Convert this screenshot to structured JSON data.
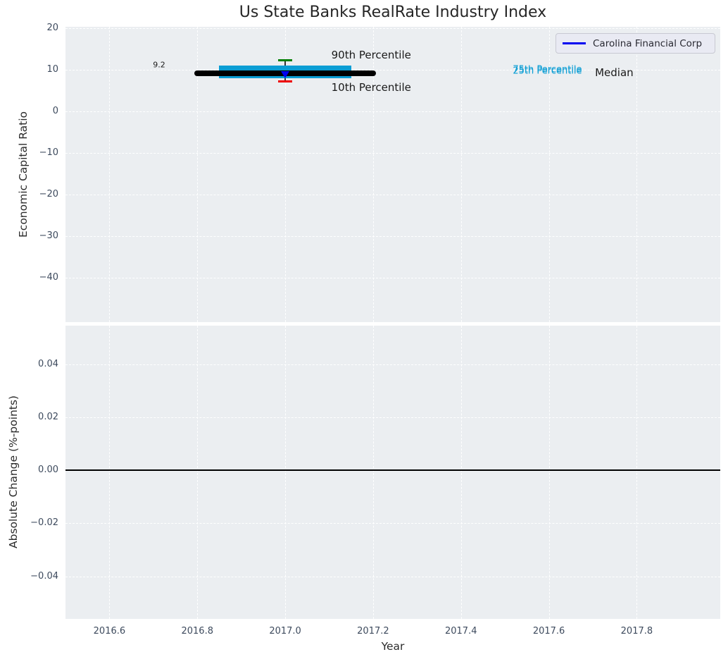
{
  "figure": {
    "title": "Us State Banks RealRate Industry Index",
    "xlabel": "Year",
    "plot_background": "#ebeef1",
    "grid_color": "rgba(255,255,255,0.95)",
    "tick_color": "#3d4a5d",
    "text_color": "#2b2b2b"
  },
  "legend": {
    "label": "Carolina Financial Corp",
    "line_color": "#0000f0",
    "position": "upper right"
  },
  "chart_data": [
    {
      "id": "economic-capital-ratio",
      "type": "boxplot",
      "ylabel": "Economic Capital Ratio",
      "xlim": [
        2016.5,
        2017.99
      ],
      "ylim": [
        -50.6,
        20.4
      ],
      "grid": true,
      "xticks": {
        "values": [
          2016.6,
          2016.8,
          2017.0,
          2017.2,
          2017.4,
          2017.6,
          2017.8
        ],
        "labels": [
          "2016.6",
          "2016.8",
          "2017.0",
          "2017.2",
          "2017.4",
          "2017.6",
          "2017.8"
        ],
        "show_labels": false
      },
      "yticks": {
        "values": [
          20,
          10,
          0,
          -10,
          -20,
          -30,
          -40
        ],
        "labels": [
          "20",
          "10",
          "0",
          "−10",
          "−20",
          "−30",
          "−40"
        ]
      },
      "box": {
        "year": 2017.0,
        "median": 9.2,
        "p25": 8.0,
        "p75": 11.0,
        "p10": 7.2,
        "p90": 12.3,
        "median_line_span_years": [
          2016.8,
          2017.2
        ],
        "box_span_years": [
          2016.85,
          2017.15
        ],
        "cap_half_width_years": 0.016,
        "colors": {
          "box": "#0a9dd4",
          "median_line": "#000000",
          "p90_cap": "#007e00",
          "p10_cap": "#ee0000",
          "whisker": "#333333"
        }
      },
      "company_point": {
        "name": "Carolina Financial Corp",
        "year": 2017.0,
        "value": 9.2,
        "marker": "triangle-down",
        "color": "#0000f0",
        "value_label": "9.2"
      },
      "annotations": [
        {
          "name": "annotation-90th-percentile",
          "text": "90th Percentile",
          "year": 2017.105,
          "value": 13.5,
          "color": "#1a1a1a",
          "size": 15
        },
        {
          "name": "annotation-10th-percentile",
          "text": "10th Percentile",
          "year": 2017.105,
          "value": 5.6,
          "color": "#1a1a1a",
          "size": 15
        },
        {
          "name": "annotation-75th-percentile",
          "text": "75th Percentile",
          "year": 2017.518,
          "value": 9.85,
          "color": "#0a9dd4",
          "size": 13
        },
        {
          "name": "annotation-25th-percentile",
          "text": "25th Percentile",
          "year": 2017.518,
          "value": 9.55,
          "color": "#0a9dd4",
          "size": 13
        },
        {
          "name": "annotation-median",
          "text": "Median",
          "year": 2017.705,
          "value": 9.3,
          "color": "#1a1a1a",
          "size": 15
        },
        {
          "name": "company-value-label",
          "text": "9.2",
          "year": 2016.699,
          "value": 11.0,
          "color": "#1a1a1a",
          "size": 11
        }
      ]
    },
    {
      "id": "absolute-change",
      "type": "line",
      "ylabel": "Absolute Change (%-points)",
      "xlim": [
        2016.5,
        2017.99
      ],
      "ylim": [
        -0.056,
        0.0545
      ],
      "grid": true,
      "xticks": {
        "values": [
          2016.6,
          2016.8,
          2017.0,
          2017.2,
          2017.4,
          2017.6,
          2017.8
        ],
        "labels": [
          "2016.6",
          "2016.8",
          "2017.0",
          "2017.2",
          "2017.4",
          "2017.6",
          "2017.8"
        ],
        "show_labels": true
      },
      "yticks": {
        "values": [
          0.04,
          0.02,
          0,
          -0.02,
          -0.04
        ],
        "labels": [
          "0.04",
          "0.02",
          "0.00",
          "−0.02",
          "−0.04"
        ]
      },
      "zero_line": {
        "value": 0,
        "color": "#000000"
      },
      "series": []
    }
  ]
}
